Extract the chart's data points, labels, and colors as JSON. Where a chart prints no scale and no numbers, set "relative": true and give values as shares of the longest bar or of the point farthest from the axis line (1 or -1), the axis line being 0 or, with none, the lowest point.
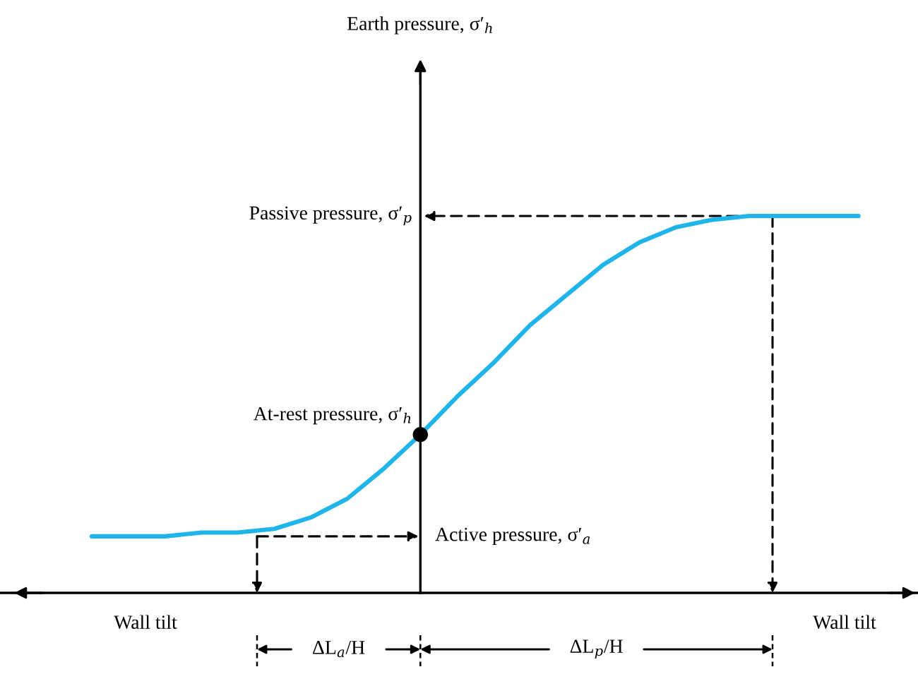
{
  "chart_data": {
    "type": "line",
    "relative": true,
    "categories": [
      null,
      null,
      null,
      null,
      null,
      null,
      null,
      null,
      null,
      null,
      null,
      null,
      null,
      null,
      null,
      null,
      null,
      null,
      null,
      null,
      null,
      null
    ],
    "series": [
      {
        "color": "#1fb4ea",
        "values": [
          0.15,
          0.15,
          0.15,
          0.16,
          0.16,
          0.17,
          0.2,
          0.25,
          0.33,
          0.42,
          0.52,
          0.61,
          0.71,
          0.79,
          0.87,
          0.93,
          0.97,
          0.99,
          1,
          1,
          1,
          1
        ]
      }
    ],
    "annotations": [
      "Earth pressure, σ′$_{h}$",
      "Passive pressure, σ′$_{p}$",
      "At-rest pressure, σ′$_{h}$",
      "Active pressure, σ′$_{a}$",
      "Wall tilt",
      "Wall tilt",
      "ΔL$_{a}$/H",
      "ΔL$_{p}$/H"
    ]
  }
}
